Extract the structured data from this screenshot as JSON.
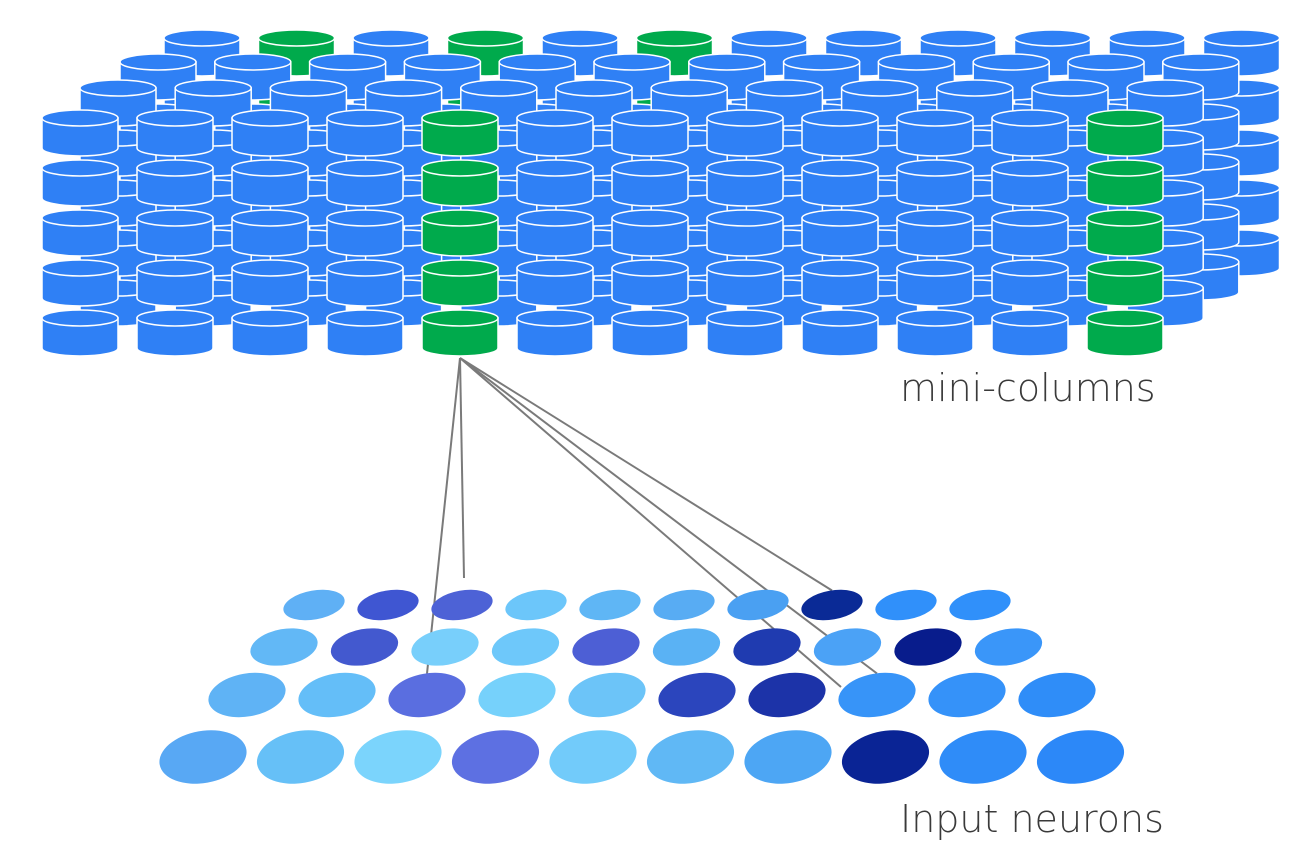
{
  "labels": {
    "columns": "mini-columns",
    "inputs": "Input neurons"
  },
  "colors": {
    "column_blue": "#2f80f5",
    "column_active_green": "#00aa4c",
    "cell_outline": "#ffffff",
    "connection_line": "#7a7a7a"
  },
  "mini_columns": {
    "layers": 5,
    "rows": 5,
    "columns_per_row": [
      12,
      12,
      12,
      12,
      12
    ],
    "active_columns": [
      {
        "row": 0,
        "column": 1
      },
      {
        "row": 0,
        "column": 3
      },
      {
        "row": 0,
        "column": 5
      },
      {
        "row": 4,
        "column": 4
      },
      {
        "row": 4,
        "column": 11
      }
    ]
  },
  "input_neurons": {
    "rows": [
      [
        "#5fb0f5",
        "#3f56d2",
        "#4d62d6",
        "#6cc6fa",
        "#5fb6f5",
        "#58acf3",
        "#4aa0f2",
        "#0a2a96",
        "#3090fa",
        "#3090fa"
      ],
      [
        "#62b8f6",
        "#4359cf",
        "#78cffb",
        "#6ec8fa",
        "#4d5fd5",
        "#5ab2f4",
        "#1f3bb0",
        "#4ba2f6",
        "#081c8c",
        "#3a96f9"
      ],
      [
        "#5fb3f5",
        "#64bef8",
        "#5a6ee0",
        "#76d1fb",
        "#6cc4f8",
        "#2b45bd",
        "#1c33a8",
        "#3794f8",
        "#3592f9",
        "#2f8df8"
      ],
      [
        "#58a8f4",
        "#66c0f7",
        "#7bd4fc",
        "#5d70e2",
        "#72cbfa",
        "#60b8f5",
        "#4da6f4",
        "#0a2495",
        "#2f8cf8",
        "#2c88f8"
      ]
    ],
    "connected_neurons": [
      {
        "row": 0,
        "column": 7
      },
      {
        "row": 2,
        "column": 2
      },
      {
        "row": 2,
        "column": 7
      }
    ],
    "connection_stub_count": 1
  }
}
